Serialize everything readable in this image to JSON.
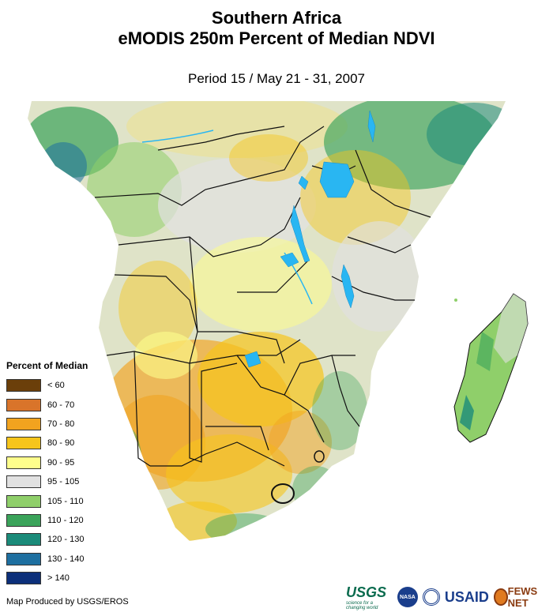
{
  "header": {
    "title_line1": "Southern Africa",
    "title_line2": "eMODIS 250m Percent of Median NDVI",
    "subtitle": "Period 15 / May 21 - 31, 2007"
  },
  "legend": {
    "title": "Percent of Median",
    "items": [
      {
        "label": "< 60",
        "color": "#6b3f0a"
      },
      {
        "label": "60 - 70",
        "color": "#d9742a"
      },
      {
        "label": "70 - 80",
        "color": "#f2a31f"
      },
      {
        "label": "80 - 90",
        "color": "#f6c51b"
      },
      {
        "label": "90 - 95",
        "color": "#fefe8c"
      },
      {
        "label": "95 - 105",
        "color": "#e1e1e1"
      },
      {
        "label": "105 - 110",
        "color": "#8fcf6a"
      },
      {
        "label": "110 - 120",
        "color": "#3aa35a"
      },
      {
        "label": "120 - 130",
        "color": "#1b8b7a"
      },
      {
        "label": "130 - 140",
        "color": "#1e6fa0"
      },
      {
        "label": "> 140",
        "color": "#0c2f7a"
      }
    ]
  },
  "footer": {
    "credit": "Map Produced by USGS/EROS"
  },
  "logos": {
    "usgs_text": "USGS",
    "usgs_tagline": "science for a changing world",
    "nasa_text": "NASA",
    "usaid_text": "USAID",
    "fews_text": "FEWS NET"
  },
  "map": {
    "water_color": "#29b6f2",
    "border_color": "#000000",
    "land_colors": [
      "#e1e1e1",
      "#fefe8c",
      "#f6c51b",
      "#f2a31f",
      "#8fcf6a",
      "#3aa35a",
      "#1b8b7a",
      "#1e6fa0"
    ]
  }
}
